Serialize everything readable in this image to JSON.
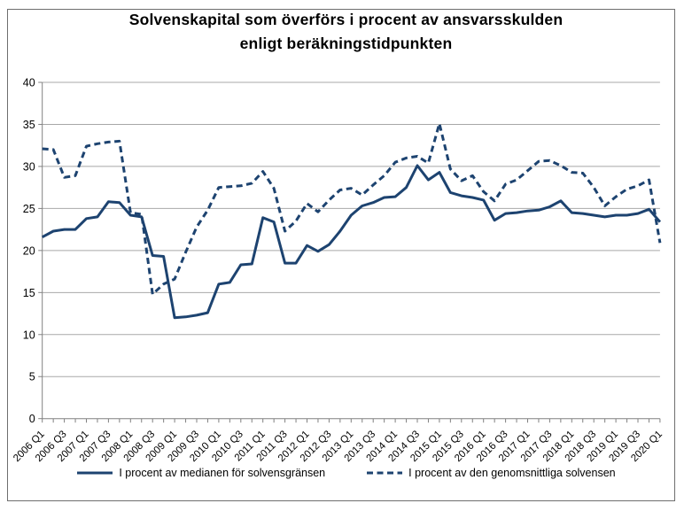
{
  "chart": {
    "title_line1": "Solvenskapital som överförs i procent av ansvarsskulden",
    "title_line2": "enligt beräkningstidpunkten",
    "colors": {
      "line": "#1d4370",
      "gridline": "#a8a8a8",
      "axis": "#808080",
      "frame_border": "#6e6e6e",
      "text": "#000000"
    }
  },
  "chart_data": {
    "type": "line",
    "title": "Solvenskapital som överförs i procent av ansvarsskulden enligt beräkningstidpunkten",
    "xlabel": "",
    "ylabel": "",
    "ylim": [
      0,
      40
    ],
    "y_ticks": [
      0,
      5,
      10,
      15,
      20,
      25,
      30,
      35,
      40
    ],
    "grid": true,
    "legend_position": "bottom",
    "x_tick_label_rotation": 45,
    "categories": [
      "2006 Q1",
      "2006 Q2",
      "2006 Q3",
      "2006 Q4",
      "2007 Q1",
      "2007 Q2",
      "2007 Q3",
      "2007 Q4",
      "2008 Q1",
      "2008 Q2",
      "2008 Q3",
      "2008 Q4",
      "2009 Q1",
      "2009 Q2",
      "2009 Q3",
      "2009 Q4",
      "2010 Q1",
      "2010 Q2",
      "2010 Q3",
      "2010 Q4",
      "2011 Q1",
      "2011 Q2",
      "2011 Q3",
      "2011 Q4",
      "2012 Q1",
      "2012 Q2",
      "2012 Q3",
      "2012 Q4",
      "2013 Q1",
      "2013 Q2",
      "2013 Q3",
      "2013 Q4",
      "2014 Q1",
      "2014 Q2",
      "2014 Q3",
      "2014 Q4",
      "2015 Q1",
      "2015 Q2",
      "2015 Q3",
      "2015 Q4",
      "2016 Q1",
      "2016 Q2",
      "2016 Q3",
      "2016 Q4",
      "2017 Q1",
      "2017 Q2",
      "2017 Q3",
      "2017 Q4",
      "2018 Q1",
      "2018 Q2",
      "2018 Q3",
      "2018 Q4",
      "2019 Q1",
      "2019 Q2",
      "2019 Q3",
      "2019 Q4",
      "2020 Q1"
    ],
    "x_labels_every": 2,
    "series": [
      {
        "name": "I procent av medianen för solvensgränsen",
        "style": "solid",
        "values": [
          21.6,
          22.3,
          22.5,
          22.5,
          23.8,
          24.0,
          25.8,
          25.7,
          24.2,
          24.0,
          19.4,
          19.3,
          12.0,
          12.1,
          12.3,
          12.6,
          16.0,
          16.2,
          18.3,
          18.4,
          23.9,
          23.4,
          18.5,
          18.5,
          20.6,
          19.9,
          20.7,
          22.3,
          24.2,
          25.3,
          25.7,
          26.3,
          26.4,
          27.5,
          30.1,
          28.4,
          29.3,
          26.9,
          26.5,
          26.3,
          26.0,
          23.6,
          24.4,
          24.5,
          24.7,
          24.8,
          25.2,
          25.9,
          24.5,
          24.4,
          24.2,
          24.0,
          24.2,
          24.2,
          24.4,
          24.9,
          23.4
        ]
      },
      {
        "name": "I procent av den genomsnittliga solvensen",
        "style": "dashed",
        "values": [
          32.1,
          32.0,
          28.7,
          28.9,
          32.4,
          32.7,
          32.9,
          33.0,
          24.5,
          24.3,
          14.8,
          16.0,
          16.6,
          19.8,
          22.8,
          24.8,
          27.5,
          27.6,
          27.7,
          28.0,
          29.4,
          27.4,
          22.3,
          23.5,
          25.6,
          24.6,
          26.0,
          27.2,
          27.4,
          26.6,
          27.8,
          28.9,
          30.5,
          31.0,
          31.2,
          30.4,
          35.1,
          29.7,
          28.3,
          28.9,
          27.0,
          25.9,
          27.9,
          28.4,
          29.5,
          30.6,
          30.7,
          30.1,
          29.3,
          29.2,
          27.5,
          25.3,
          26.4,
          27.3,
          27.7,
          28.4,
          20.9
        ]
      }
    ]
  }
}
